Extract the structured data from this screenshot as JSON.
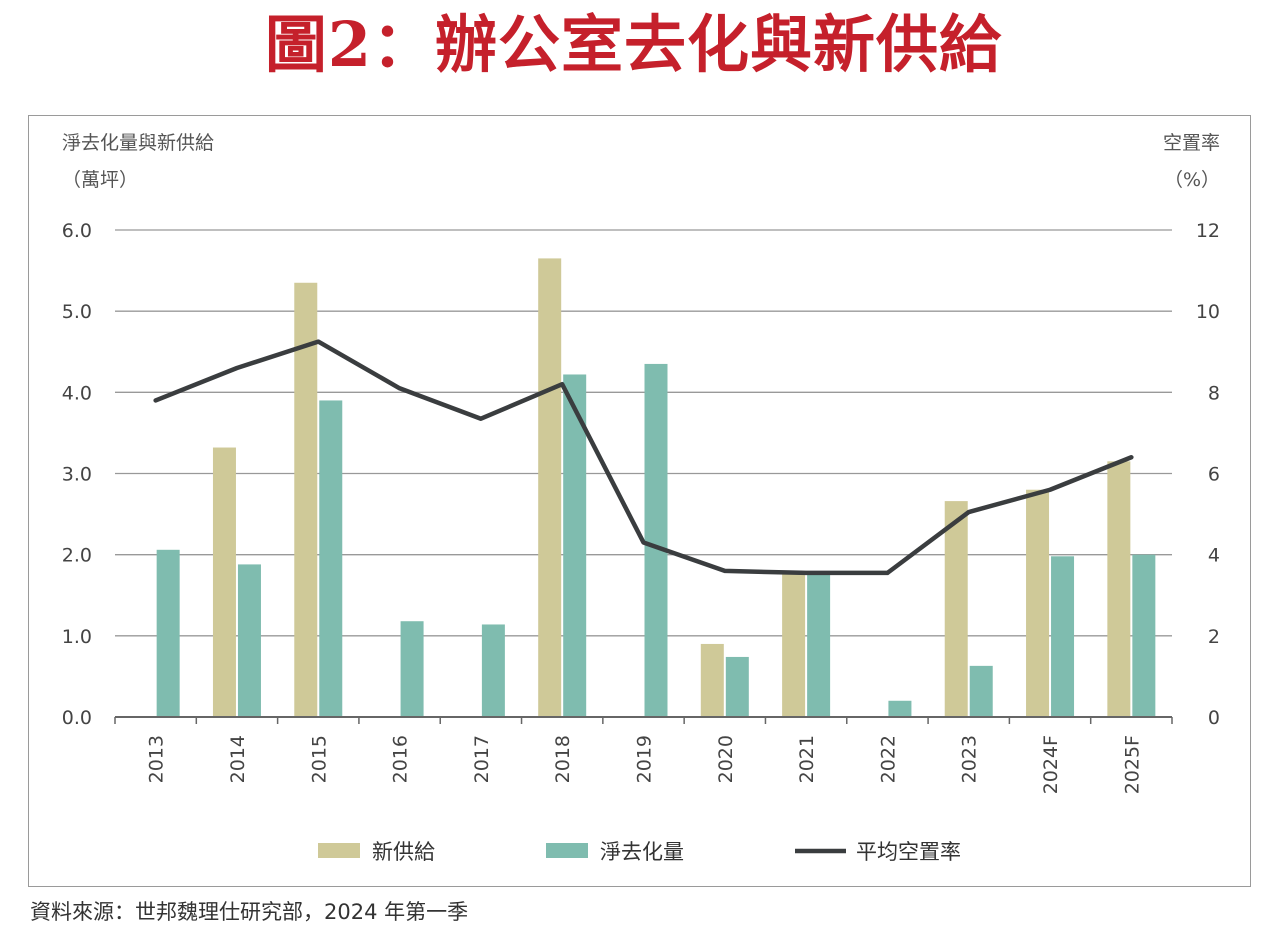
{
  "title": "圖2：辦公室去化與新供給",
  "source": "資料來源：世邦魏理仕研究部，2024 年第一季",
  "colors": {
    "title": "#c5202b",
    "new_supply": "#cfc998",
    "net_absorption": "#7fbcaf",
    "vacancy_line": "#3a3d3f",
    "grid": "#999999"
  },
  "chart_data": {
    "type": "bar",
    "categories": [
      "2013",
      "2014",
      "2015",
      "2016",
      "2017",
      "2018",
      "2019",
      "2020",
      "2021",
      "2022",
      "2023",
      "2024F",
      "2025F"
    ],
    "series": [
      {
        "name": "新供給",
        "type": "bar",
        "axis": "left",
        "values": [
          0,
          3.32,
          5.35,
          0,
          0,
          5.65,
          0,
          0.9,
          1.78,
          0,
          2.66,
          2.8,
          3.15
        ]
      },
      {
        "name": "淨去化量",
        "type": "bar",
        "axis": "left",
        "values": [
          2.06,
          1.88,
          3.9,
          1.18,
          1.14,
          4.22,
          4.35,
          0.74,
          1.75,
          0.2,
          0.63,
          1.98,
          2.0
        ]
      },
      {
        "name": "平均空置率",
        "type": "line",
        "axis": "right",
        "values": [
          7.8,
          8.6,
          9.25,
          8.1,
          7.35,
          8.2,
          4.3,
          3.6,
          3.55,
          3.55,
          5.05,
          5.6,
          6.4
        ]
      }
    ],
    "left_axis": {
      "label_line1": "淨去化量與新供給",
      "label_line2": "（萬坪）",
      "range": [
        0,
        6
      ],
      "ticks": [
        "0.0",
        "1.0",
        "2.0",
        "3.0",
        "4.0",
        "5.0",
        "6.0"
      ]
    },
    "right_axis": {
      "label_line1": "空置率",
      "label_line2": "（%）",
      "range": [
        0,
        12
      ],
      "ticks": [
        "0",
        "2",
        "4",
        "6",
        "8",
        "10",
        "12"
      ]
    },
    "grid": true,
    "legend_position": "bottom"
  }
}
